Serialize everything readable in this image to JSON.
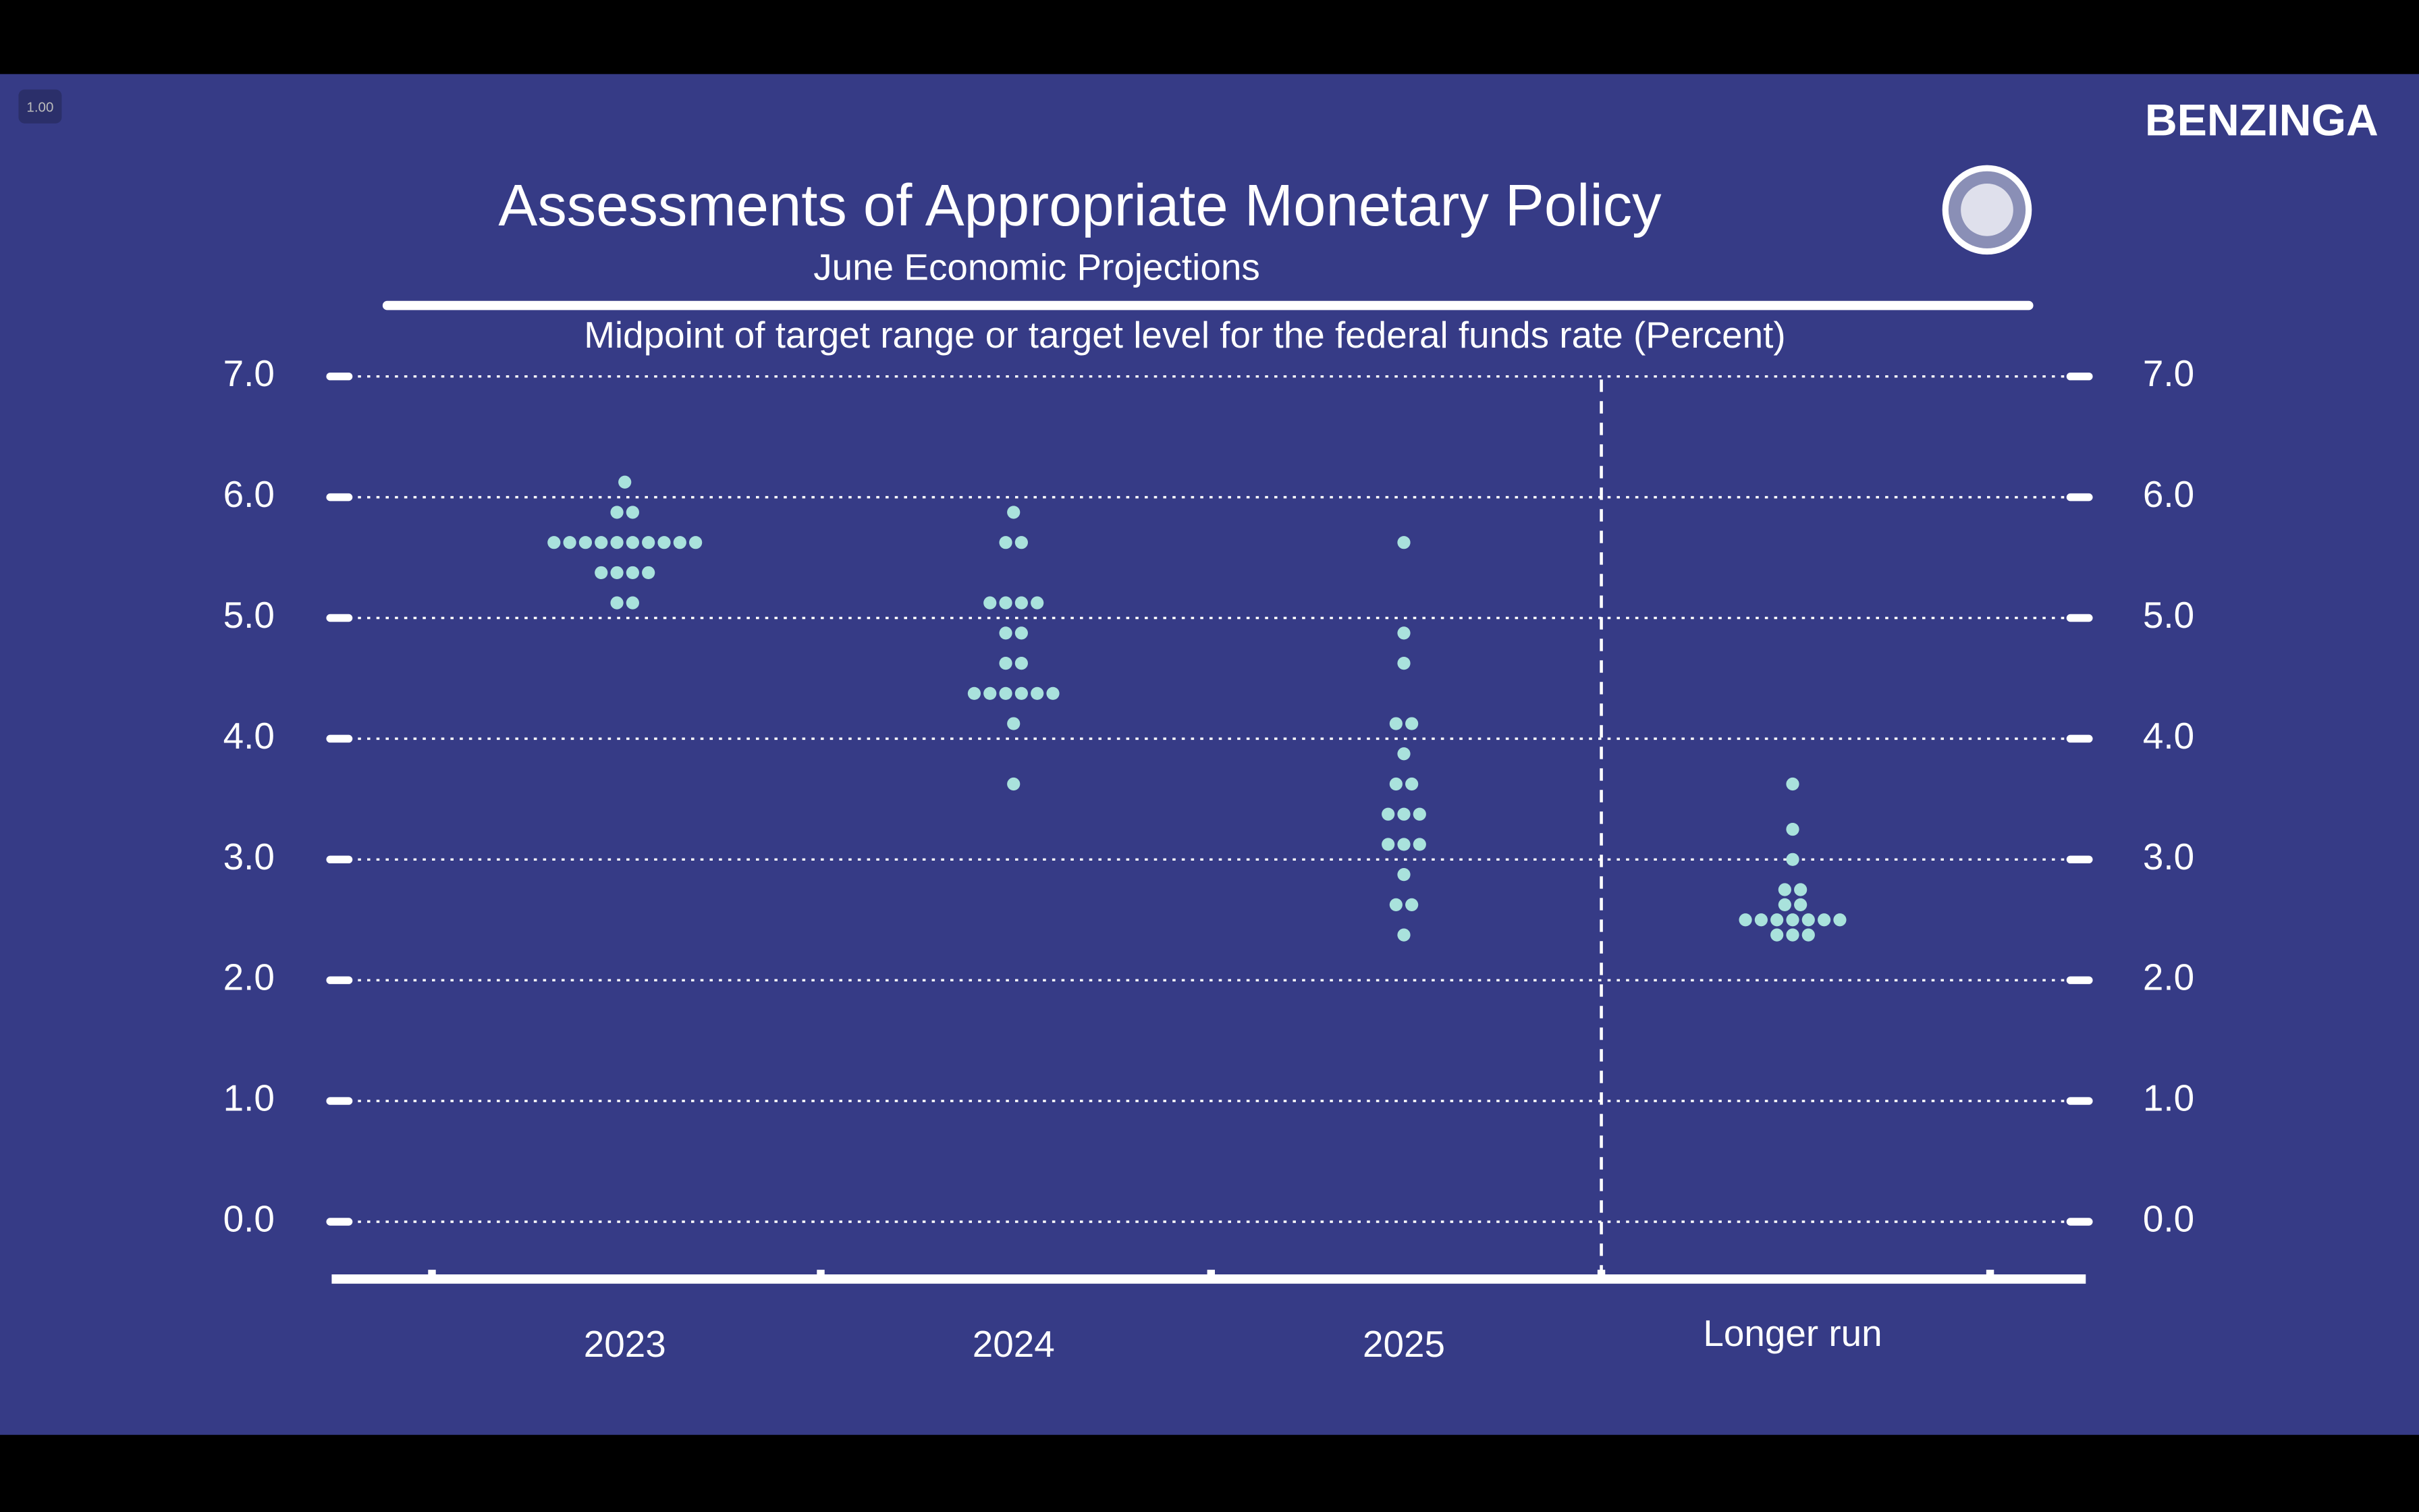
{
  "speed_badge": "1.00",
  "brand": "BENZINGA",
  "chart_data": {
    "type": "dot",
    "title": "Assessments of Appropriate Monetary Policy",
    "subtitle": "June Economic Projections",
    "y_label": "Midpoint of target range or target level for the federal funds rate (Percent)",
    "color": "#a9e2dc",
    "categories": [
      "2023",
      "2024",
      "2025",
      "Longer run"
    ],
    "dots": [
      [
        {
          "value": 6.125,
          "count": 1
        },
        {
          "value": 5.875,
          "count": 2
        },
        {
          "value": 5.625,
          "count": 10
        },
        {
          "value": 5.375,
          "count": 4
        },
        {
          "value": 5.125,
          "count": 2
        }
      ],
      [
        {
          "value": 5.875,
          "count": 1
        },
        {
          "value": 5.625,
          "count": 2
        },
        {
          "value": 5.125,
          "count": 4
        },
        {
          "value": 4.875,
          "count": 2
        },
        {
          "value": 4.625,
          "count": 2
        },
        {
          "value": 4.375,
          "count": 6
        },
        {
          "value": 4.125,
          "count": 1
        },
        {
          "value": 3.625,
          "count": 1
        }
      ],
      [
        {
          "value": 5.625,
          "count": 1
        },
        {
          "value": 4.875,
          "count": 1
        },
        {
          "value": 4.625,
          "count": 1
        },
        {
          "value": 4.125,
          "count": 2
        },
        {
          "value": 3.875,
          "count": 1
        },
        {
          "value": 3.625,
          "count": 2
        },
        {
          "value": 3.375,
          "count": 3
        },
        {
          "value": 3.125,
          "count": 3
        },
        {
          "value": 2.875,
          "count": 1
        },
        {
          "value": 2.625,
          "count": 2
        },
        {
          "value": 2.375,
          "count": 1
        }
      ],
      [
        {
          "value": 3.625,
          "count": 1
        },
        {
          "value": 3.25,
          "count": 1
        },
        {
          "value": 3.0,
          "count": 1
        },
        {
          "value": 2.75,
          "count": 2
        },
        {
          "value": 2.625,
          "count": 2
        },
        {
          "value": 2.5,
          "count": 7
        },
        {
          "value": 2.375,
          "count": 3
        }
      ]
    ],
    "ylim": [
      -0.5,
      7.0
    ],
    "yticks": [
      {
        "value": 0,
        "label": "0.0"
      },
      {
        "value": 1,
        "label": "1.0"
      },
      {
        "value": 2,
        "label": "2.0"
      },
      {
        "value": 3,
        "label": "3.0"
      },
      {
        "value": 4,
        "label": "4.0"
      },
      {
        "value": 5,
        "label": "5.0"
      },
      {
        "value": 6,
        "label": "6.0"
      },
      {
        "value": 7,
        "label": "7.0"
      }
    ],
    "grid": true
  }
}
